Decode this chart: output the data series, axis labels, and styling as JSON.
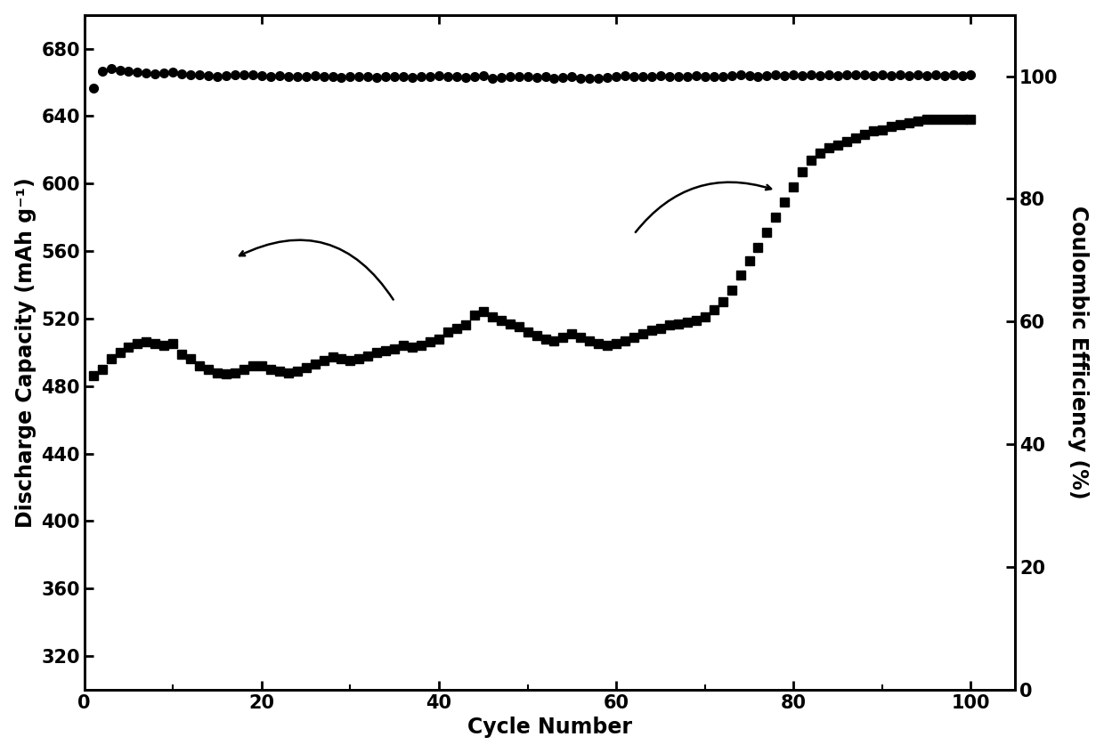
{
  "title": "",
  "xlabel": "Cycle Number",
  "ylabel_left": "Discharge Capacity (mAh g⁻¹)",
  "ylabel_right": "Coulombic Efficiency (%)",
  "xlim": [
    0,
    105
  ],
  "ylim_left": [
    300,
    700
  ],
  "ylim_right": [
    0,
    110
  ],
  "yticks_left": [
    320,
    360,
    400,
    440,
    480,
    520,
    560,
    600,
    640,
    680
  ],
  "yticks_right": [
    0,
    20,
    40,
    60,
    80,
    100
  ],
  "xticks": [
    0,
    20,
    40,
    60,
    80,
    100
  ],
  "discharge_capacity": {
    "x": [
      1,
      2,
      3,
      4,
      5,
      6,
      7,
      8,
      9,
      10,
      11,
      12,
      13,
      14,
      15,
      16,
      17,
      18,
      19,
      20,
      21,
      22,
      23,
      24,
      25,
      26,
      27,
      28,
      29,
      30,
      31,
      32,
      33,
      34,
      35,
      36,
      37,
      38,
      39,
      40,
      41,
      42,
      43,
      44,
      45,
      46,
      47,
      48,
      49,
      50,
      51,
      52,
      53,
      54,
      55,
      56,
      57,
      58,
      59,
      60,
      61,
      62,
      63,
      64,
      65,
      66,
      67,
      68,
      69,
      70,
      71,
      72,
      73,
      74,
      75,
      76,
      77,
      78,
      79,
      80,
      81,
      82,
      83,
      84,
      85,
      86,
      87,
      88,
      89,
      90,
      91,
      92,
      93,
      94,
      95,
      96,
      97,
      98,
      99,
      100
    ],
    "y": [
      486,
      490,
      496,
      500,
      503,
      505,
      506,
      505,
      504,
      505,
      499,
      496,
      492,
      490,
      488,
      487,
      488,
      490,
      492,
      492,
      490,
      489,
      488,
      489,
      491,
      493,
      495,
      497,
      496,
      495,
      496,
      498,
      500,
      501,
      502,
      504,
      503,
      504,
      506,
      508,
      512,
      514,
      516,
      522,
      524,
      521,
      519,
      517,
      515,
      512,
      510,
      508,
      507,
      509,
      511,
      509,
      507,
      505,
      504,
      505,
      507,
      509,
      511,
      513,
      514,
      516,
      517,
      518,
      519,
      521,
      525,
      530,
      537,
      546,
      554,
      562,
      571,
      580,
      589,
      598,
      607,
      614,
      618,
      621,
      623,
      625,
      627,
      629,
      631,
      632,
      634,
      635,
      636,
      637,
      638,
      638,
      638,
      638,
      638,
      638
    ]
  },
  "coulombic_efficiency": {
    "x": [
      1,
      2,
      3,
      4,
      5,
      6,
      7,
      8,
      9,
      10,
      11,
      12,
      13,
      14,
      15,
      16,
      17,
      18,
      19,
      20,
      21,
      22,
      23,
      24,
      25,
      26,
      27,
      28,
      29,
      30,
      31,
      32,
      33,
      34,
      35,
      36,
      37,
      38,
      39,
      40,
      41,
      42,
      43,
      44,
      45,
      46,
      47,
      48,
      49,
      50,
      51,
      52,
      53,
      54,
      55,
      56,
      57,
      58,
      59,
      60,
      61,
      62,
      63,
      64,
      65,
      66,
      67,
      68,
      69,
      70,
      71,
      72,
      73,
      74,
      75,
      76,
      77,
      78,
      79,
      80,
      81,
      82,
      83,
      84,
      85,
      86,
      87,
      88,
      89,
      90,
      91,
      92,
      93,
      94,
      95,
      96,
      97,
      98,
      99,
      100
    ],
    "y": [
      98.0,
      100.8,
      101.2,
      101.0,
      100.8,
      100.6,
      100.5,
      100.4,
      100.5,
      100.6,
      100.4,
      100.3,
      100.2,
      100.1,
      100.0,
      100.1,
      100.2,
      100.3,
      100.2,
      100.1,
      100.0,
      100.1,
      100.0,
      99.9,
      100.0,
      100.1,
      100.0,
      99.9,
      99.8,
      99.9,
      100.0,
      99.9,
      99.8,
      99.9,
      100.0,
      99.9,
      99.8,
      99.9,
      100.0,
      100.1,
      100.0,
      99.9,
      99.8,
      100.0,
      100.1,
      99.7,
      99.8,
      99.9,
      100.0,
      99.9,
      99.8,
      100.0,
      99.7,
      99.8,
      100.0,
      99.7,
      99.6,
      99.7,
      99.8,
      100.0,
      100.1,
      100.0,
      99.9,
      100.0,
      100.1,
      100.0,
      99.9,
      100.0,
      100.1,
      100.0,
      99.9,
      100.0,
      100.1,
      100.2,
      100.1,
      100.0,
      100.1,
      100.2,
      100.1,
      100.2,
      100.1,
      100.2,
      100.1,
      100.2,
      100.1,
      100.2,
      100.3,
      100.2,
      100.1,
      100.2,
      100.1,
      100.2,
      100.1,
      100.2,
      100.1,
      100.2,
      100.1,
      100.2,
      100.1,
      100.2
    ]
  },
  "bg_color": "white",
  "font_size_label": 17,
  "font_size_tick": 15
}
